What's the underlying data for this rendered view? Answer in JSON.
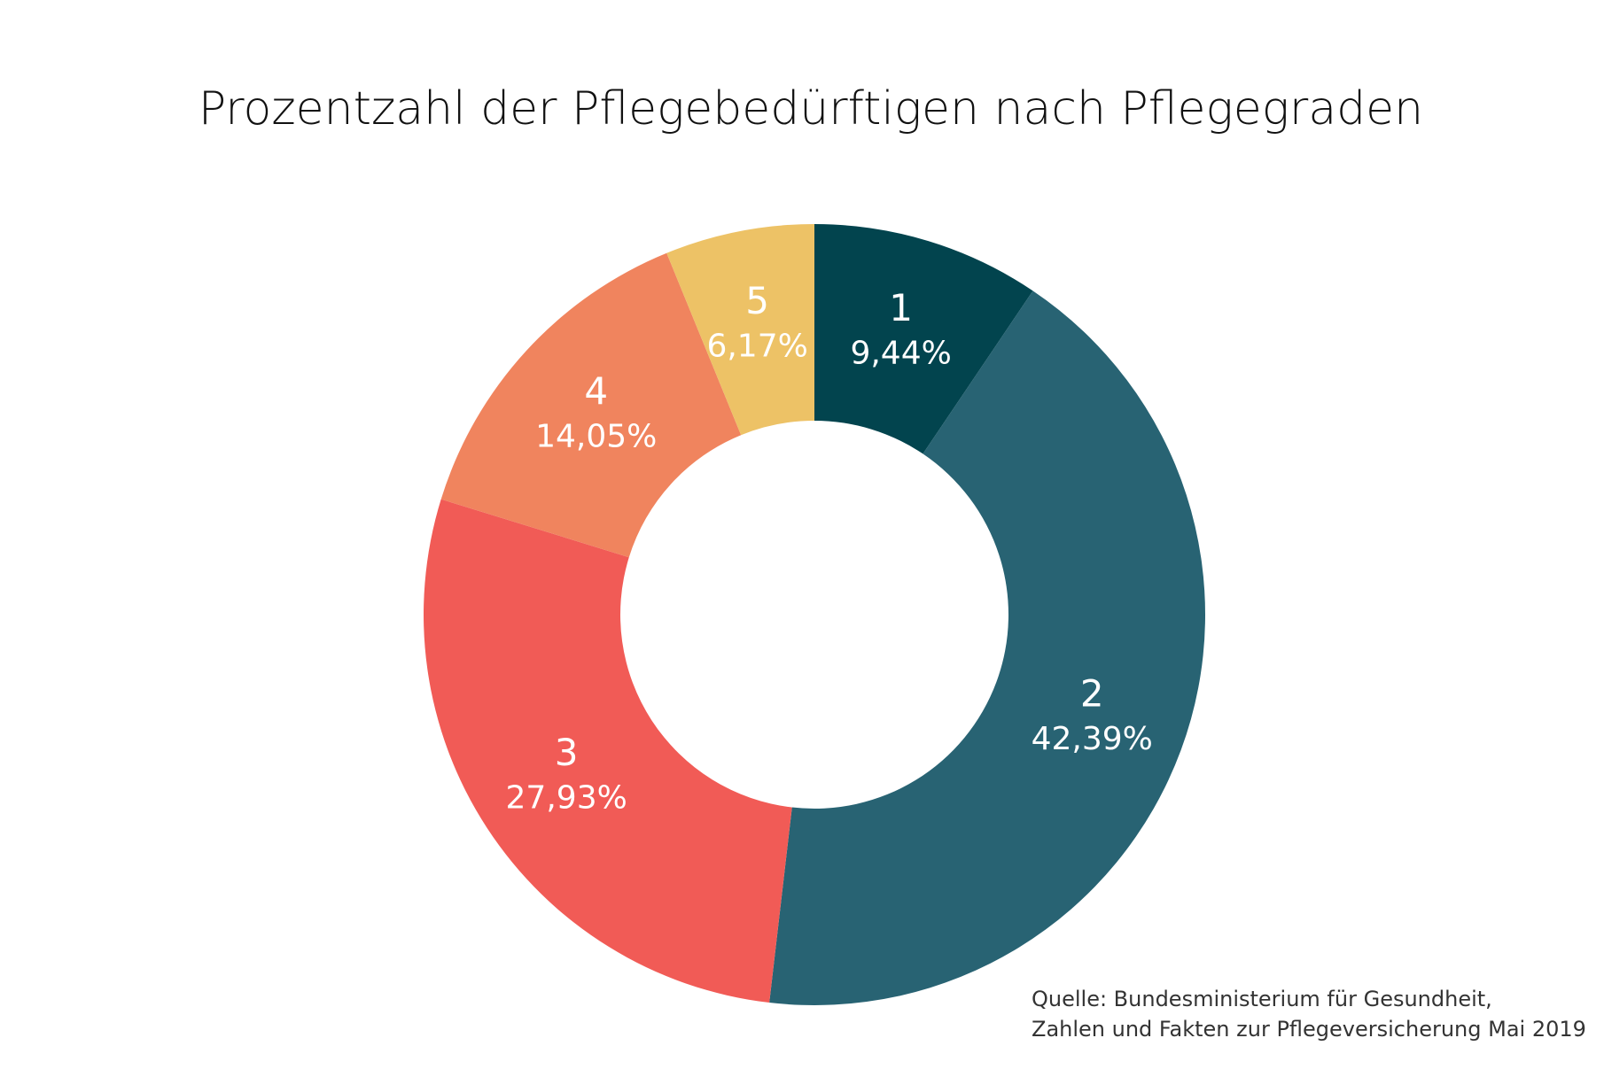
{
  "chart_data": {
    "type": "donut",
    "title": "Prozentzahl der Pflegebedürftigen nach Pflegegraden",
    "categories": [
      "1",
      "2",
      "3",
      "4",
      "5"
    ],
    "values": [
      9.44,
      42.39,
      27.93,
      14.05,
      6.17
    ],
    "value_labels": [
      "9,44%",
      "42,39%",
      "27,93%",
      "14,05%",
      "6,17%"
    ],
    "colors": [
      "#02444e",
      "#286373",
      "#f15b56",
      "#f0845e",
      "#edc266"
    ],
    "source": [
      "Quelle: Bundesministerium für Gesundheit,",
      "Zahlen und Fakten zur Pflegeversicherung Mai 2019"
    ]
  }
}
